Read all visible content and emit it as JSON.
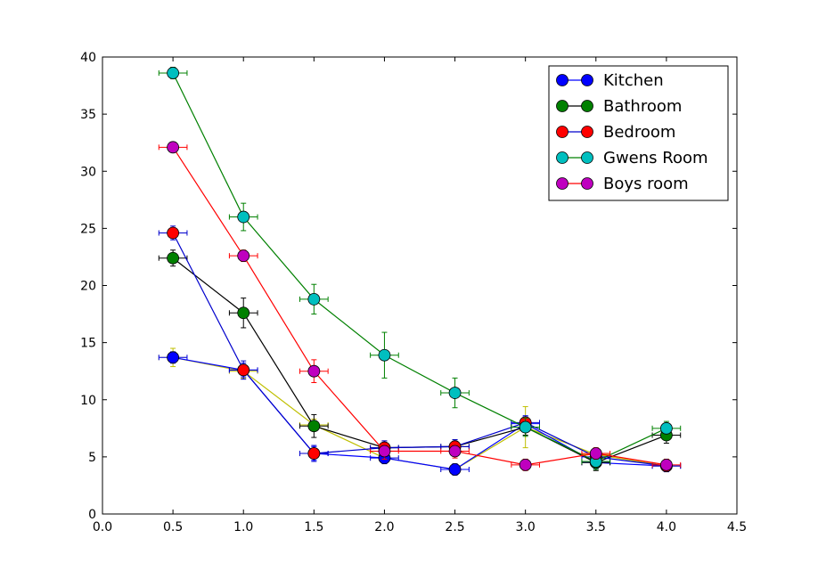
{
  "chart_data": {
    "type": "line",
    "title": "",
    "xlabel": "",
    "ylabel": "",
    "xlim": [
      0.0,
      4.5
    ],
    "ylim": [
      0,
      40
    ],
    "xticks": [
      "0.0",
      "0.5",
      "1.0",
      "1.5",
      "2.0",
      "2.5",
      "3.0",
      "3.5",
      "4.0",
      "4.5"
    ],
    "xtick_values": [
      0.0,
      0.5,
      1.0,
      1.5,
      2.0,
      2.5,
      3.0,
      3.5,
      4.0,
      4.5
    ],
    "yticks": [
      "0",
      "5",
      "10",
      "15",
      "20",
      "25",
      "30",
      "35",
      "40"
    ],
    "ytick_values": [
      0,
      5,
      10,
      15,
      20,
      25,
      30,
      35,
      40
    ],
    "grid": false,
    "legend_position": "top-right",
    "x_error": 0.1,
    "series": [
      {
        "name": "Kitchen",
        "marker_color": "#0000ff",
        "line_color": "#0000ff",
        "x": [
          0.5,
          1.0,
          1.5,
          2.0,
          2.5,
          3.0,
          3.5,
          4.0
        ],
        "y": [
          13.7,
          12.6,
          5.3,
          4.9,
          3.9,
          7.9,
          4.5,
          4.2
        ],
        "yerr": [
          0.5,
          0.6,
          0.6,
          0.5,
          0.5,
          0.6,
          0.5,
          0.5
        ]
      },
      {
        "name": "Bathroom",
        "marker_color": "#008000",
        "line_color": "#000000",
        "x": [
          0.5,
          1.0,
          1.5,
          2.0,
          2.5,
          3.0,
          3.5,
          4.0
        ],
        "y": [
          22.4,
          17.6,
          7.7,
          5.8,
          5.9,
          7.6,
          4.5,
          6.9
        ],
        "yerr": [
          0.7,
          1.3,
          1.0,
          0.6,
          0.6,
          0.7,
          0.7,
          0.7
        ]
      },
      {
        "name": "Bedroom",
        "marker_color": "#ff0000",
        "line_color": "#0000cc",
        "x": [
          0.5,
          1.0,
          1.5,
          2.0,
          2.5,
          3.0,
          3.5,
          4.0
        ],
        "y": [
          24.6,
          12.6,
          5.3,
          5.8,
          5.9,
          8.0,
          5.0,
          4.2
        ],
        "yerr": [
          0.6,
          0.8,
          0.7,
          0.6,
          0.6,
          0.6,
          0.5,
          0.5
        ]
      },
      {
        "name": "Gwens Room",
        "marker_color": "#00bfbf",
        "line_color": "#008000",
        "x": [
          0.5,
          1.0,
          1.5,
          2.0,
          2.5,
          3.0,
          3.5,
          4.0
        ],
        "y": [
          38.6,
          26.0,
          18.8,
          13.9,
          10.6,
          7.6,
          4.6,
          7.5
        ],
        "yerr": [
          0.5,
          1.2,
          1.3,
          2.0,
          1.3,
          0.8,
          0.7,
          0.6
        ]
      },
      {
        "name": "Boys room",
        "marker_color": "#bf00bf",
        "line_color": "#ff0000",
        "x": [
          0.5,
          1.0,
          1.5,
          2.0,
          2.5,
          3.0,
          3.5,
          4.0
        ],
        "y": [
          32.1,
          22.6,
          12.5,
          5.5,
          5.5,
          4.3,
          5.3,
          4.3
        ],
        "yerr": [
          0.4,
          0.5,
          1.0,
          0.7,
          0.6,
          0.5,
          0.5,
          0.5
        ]
      }
    ],
    "extra_line": {
      "line_color": "#bfbf00",
      "x": [
        0.5,
        1.0,
        1.5,
        2.0,
        2.5,
        3.0,
        3.5,
        4.0
      ],
      "y": [
        13.7,
        12.5,
        7.8,
        4.9,
        3.9,
        7.6,
        5.2,
        4.2
      ],
      "yerr": [
        0.8,
        0.6,
        0.5,
        0.5,
        0.5,
        1.8,
        0.5,
        0.5
      ]
    }
  }
}
